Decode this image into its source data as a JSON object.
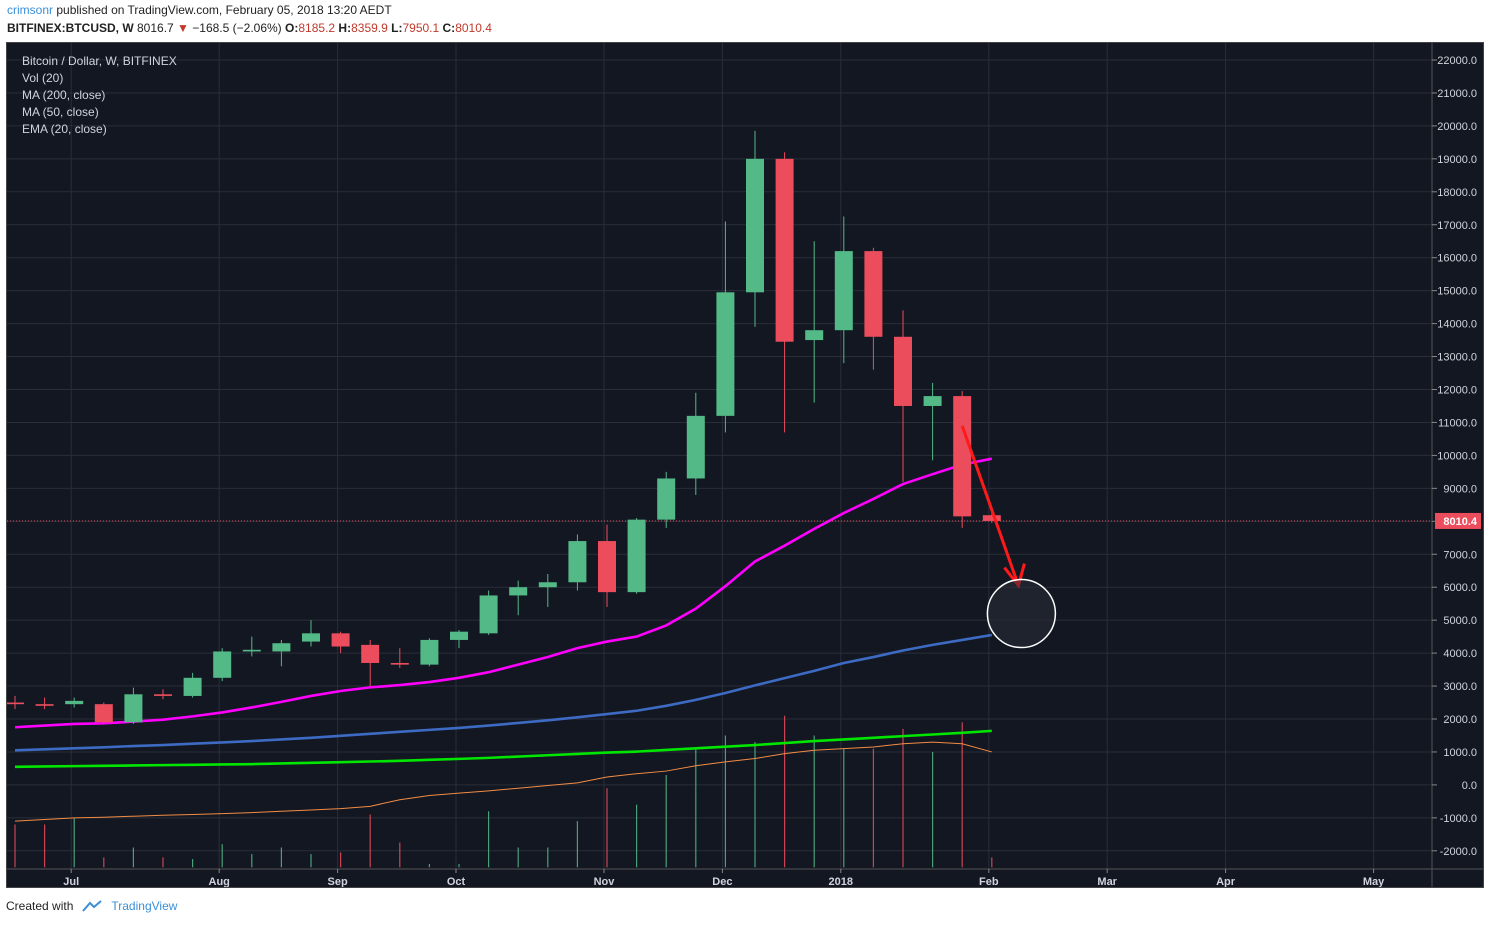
{
  "header": {
    "user": "crimsonr",
    "published": "published on TradingView.com, February 05, 2018 13:20 AEDT",
    "symbol": "BITFINEX:BTCUSD, W",
    "last": "8016.7",
    "arrow": "▼",
    "change": "−168.5 (−2.06%)",
    "o_label": "O:",
    "o": "8185.2",
    "h_label": "H:",
    "h": "8359.9",
    "l_label": "L:",
    "l": "7950.1",
    "c_label": "C:",
    "c": "8010.4"
  },
  "legend": {
    "title": "Bitcoin / Dollar, W, BITFINEX",
    "vol": "Vol (20)",
    "ma200": "MA (200, close)",
    "ma50": "MA (50, close)",
    "ema20": "EMA (20, close)"
  },
  "footer": {
    "created": "Created with",
    "brand": "TradingView"
  },
  "colors": {
    "background": "#131722",
    "grid": "#2a2e39",
    "up": "#53b987",
    "down": "#eb4d5c",
    "ema20": "#ff00ff",
    "ma50": "#3d6bc4",
    "ma200": "#00e600",
    "vol_ma": "#f28c45",
    "arrow": "#ff1a1a",
    "price_line": "#eb4d5c"
  },
  "chart_data": {
    "type": "candlestick",
    "title": "Bitcoin / Dollar, W, BITFINEX",
    "yaxis_ticks": [
      "22000.0",
      "21000.0",
      "20000.0",
      "19000.0",
      "18000.0",
      "17000.0",
      "16000.0",
      "15000.0",
      "14000.0",
      "13000.0",
      "12000.0",
      "11000.0",
      "10000.0",
      "9000.0",
      "8000.0",
      "7000.0",
      "6000.0",
      "5000.0",
      "4000.0",
      "3000.0",
      "2000.0",
      "1000.0",
      "0.0",
      "-1000.0",
      "-2000.0"
    ],
    "ylim": [
      -2400,
      22300
    ],
    "xaxis_labels": [
      {
        "label": "Jul",
        "week": 2
      },
      {
        "label": "Aug",
        "week": 7
      },
      {
        "label": "Sep",
        "week": 11
      },
      {
        "label": "Oct",
        "week": 15
      },
      {
        "label": "Nov",
        "week": 20
      },
      {
        "label": "Dec",
        "week": 24
      },
      {
        "label": "2018",
        "week": 28
      },
      {
        "label": "Feb",
        "week": 33
      },
      {
        "label": "Mar",
        "week": 37
      },
      {
        "label": "Apr",
        "week": 41
      },
      {
        "label": "May",
        "week": 46
      }
    ],
    "current_price": "8010.4",
    "candles": [
      {
        "o": 2500,
        "h": 2700,
        "l": 2300,
        "c": 2450
      },
      {
        "o": 2450,
        "h": 2650,
        "l": 2300,
        "c": 2400
      },
      {
        "o": 2450,
        "h": 2650,
        "l": 2350,
        "c": 2550
      },
      {
        "o": 2450,
        "h": 2500,
        "l": 1850,
        "c": 1900
      },
      {
        "o": 1900,
        "h": 2950,
        "l": 1850,
        "c": 2750
      },
      {
        "o": 2750,
        "h": 2900,
        "l": 2600,
        "c": 2700
      },
      {
        "o": 2700,
        "h": 3400,
        "l": 2650,
        "c": 3250
      },
      {
        "o": 3250,
        "h": 4150,
        "l": 3150,
        "c": 4050
      },
      {
        "o": 4050,
        "h": 4500,
        "l": 3900,
        "c": 4100
      },
      {
        "o": 4050,
        "h": 4400,
        "l": 3600,
        "c": 4300
      },
      {
        "o": 4350,
        "h": 5000,
        "l": 4200,
        "c": 4600
      },
      {
        "o": 4600,
        "h": 4650,
        "l": 4000,
        "c": 4200
      },
      {
        "o": 4250,
        "h": 4400,
        "l": 3000,
        "c": 3700
      },
      {
        "o": 3700,
        "h": 4150,
        "l": 3550,
        "c": 3650
      },
      {
        "o": 3650,
        "h": 4450,
        "l": 3600,
        "c": 4400
      },
      {
        "o": 4400,
        "h": 4700,
        "l": 4150,
        "c": 4650
      },
      {
        "o": 4600,
        "h": 5900,
        "l": 4550,
        "c": 5750
      },
      {
        "o": 5750,
        "h": 6200,
        "l": 5150,
        "c": 6000
      },
      {
        "o": 6000,
        "h": 6400,
        "l": 5400,
        "c": 6150
      },
      {
        "o": 6150,
        "h": 7600,
        "l": 5900,
        "c": 7400
      },
      {
        "o": 7400,
        "h": 7900,
        "l": 5400,
        "c": 5850
      },
      {
        "o": 5850,
        "h": 8100,
        "l": 5800,
        "c": 8050
      },
      {
        "o": 8050,
        "h": 9500,
        "l": 7800,
        "c": 9300
      },
      {
        "o": 9300,
        "h": 11900,
        "l": 8800,
        "c": 11200
      },
      {
        "o": 11200,
        "h": 17100,
        "l": 10700,
        "c": 14950
      },
      {
        "o": 14950,
        "h": 19850,
        "l": 13900,
        "c": 19000
      },
      {
        "o": 19000,
        "h": 19200,
        "l": 10700,
        "c": 13450
      },
      {
        "o": 13500,
        "h": 16500,
        "l": 11600,
        "c": 13800
      },
      {
        "o": 13800,
        "h": 17250,
        "l": 12800,
        "c": 16200
      },
      {
        "o": 16200,
        "h": 16300,
        "l": 12600,
        "c": 13600
      },
      {
        "o": 13600,
        "h": 14400,
        "l": 9200,
        "c": 11500
      },
      {
        "o": 11500,
        "h": 12200,
        "l": 9850,
        "c": 11800
      },
      {
        "o": 11800,
        "h": 11950,
        "l": 7800,
        "c": 8150
      },
      {
        "o": 8185.2,
        "h": 8359.9,
        "l": 7950.1,
        "c": 8010.4
      }
    ],
    "volume": [
      1300,
      1300,
      1500,
      300,
      600,
      300,
      250,
      700,
      400,
      600,
      400,
      450,
      1600,
      750,
      100,
      100,
      1700,
      600,
      600,
      1400,
      2400,
      1900,
      2800,
      3600,
      4000,
      3800,
      4600,
      4000,
      3600,
      3600,
      4200,
      3500,
      4400,
      300
    ],
    "series": [
      {
        "name": "EMA (20, close)",
        "values": [
          1750,
          1800,
          1850,
          1870,
          1920,
          1980,
          2080,
          2200,
          2350,
          2520,
          2700,
          2850,
          2960,
          3030,
          3120,
          3250,
          3420,
          3650,
          3880,
          4150,
          4350,
          4500,
          4840,
          5350,
          6030,
          6780,
          7260,
          7770,
          8250,
          8680,
          9130,
          9430,
          9720,
          9900
        ]
      },
      {
        "name": "MA (50, close)",
        "values": [
          1050,
          1080,
          1110,
          1140,
          1180,
          1210,
          1250,
          1290,
          1330,
          1380,
          1430,
          1490,
          1550,
          1610,
          1670,
          1730,
          1800,
          1880,
          1960,
          2050,
          2150,
          2250,
          2400,
          2580,
          2790,
          3020,
          3240,
          3460,
          3700,
          3880,
          4080,
          4250,
          4400,
          4550
        ]
      },
      {
        "name": "MA (200, close)",
        "values": [
          550,
          560,
          570,
          580,
          590,
          600,
          610,
          620,
          630,
          650,
          670,
          690,
          710,
          730,
          760,
          790,
          820,
          860,
          900,
          940,
          980,
          1010,
          1060,
          1110,
          1160,
          1210,
          1270,
          1330,
          1380,
          1430,
          1480,
          1530,
          1580,
          1640
        ]
      },
      {
        "name": "Vol MA",
        "values": [
          -1100,
          -1050,
          -1000,
          -980,
          -950,
          -920,
          -900,
          -870,
          -840,
          -800,
          -760,
          -720,
          -650,
          -450,
          -320,
          -250,
          -180,
          -100,
          -20,
          60,
          240,
          340,
          420,
          580,
          700,
          800,
          950,
          1050,
          1100,
          1150,
          1250,
          1300,
          1250,
          1000
        ]
      }
    ]
  }
}
